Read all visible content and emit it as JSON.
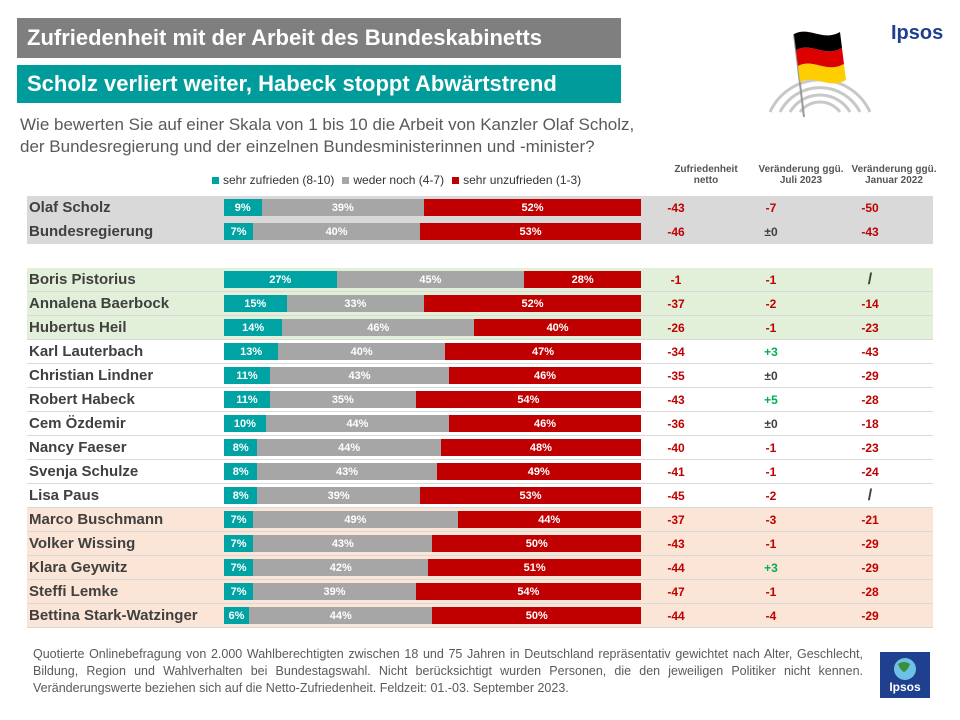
{
  "title": "Zufriedenheit mit der Arbeit des Bundeskabinetts",
  "subtitle": "Scholz verliert weiter, Habeck stoppt Abwärtstrend",
  "question_line1": "Wie bewerten Sie auf einer Skala von 1 bis 10 die Arbeit von Kanzler Olaf Scholz,",
  "question_line2": "der Bundesregierung und der einzelnen Bundesministerinnen und -minister?",
  "brand": "Ipsos",
  "colors": {
    "satisfied": "#00a3a3",
    "neutral": "#a6a6a6",
    "unsatisfied": "#c00000",
    "band_gray": "#d9d9d9",
    "band_green": "#e2f0d9",
    "band_orange": "#fbe5d6",
    "neg": "#c00000",
    "pos": "#00b050",
    "neutral_text": "#404040"
  },
  "chart_data": {
    "type": "bar",
    "orientation": "horizontal-stacked-100",
    "legend": [
      "sehr zufrieden (8-10)",
      "weder noch (4-7)",
      "sehr unzufrieden (1-3)"
    ],
    "columns": [
      "Zufriedenheit netto",
      "Veränderung ggü. Juli 2023",
      "Veränderung ggü. Januar 2022"
    ],
    "groups": [
      {
        "band": "gray",
        "rows": [
          {
            "name": "Olaf Scholz",
            "values": [
              9,
              39,
              52
            ],
            "netto": "-43",
            "chg_jul": "-7",
            "chg_jan": "-50"
          },
          {
            "name": "Bundesregierung",
            "values": [
              7,
              40,
              53
            ],
            "netto": "-46",
            "chg_jul": "±0",
            "chg_jan": "-43"
          }
        ]
      },
      {
        "band": "green",
        "rows": [
          {
            "name": "Boris Pistorius",
            "values": [
              27,
              45,
              28
            ],
            "netto": "-1",
            "chg_jul": "-1",
            "chg_jan": "/"
          },
          {
            "name": "Annalena Baerbock",
            "values": [
              15,
              33,
              52
            ],
            "netto": "-37",
            "chg_jul": "-2",
            "chg_jan": "-14"
          },
          {
            "name": "Hubertus Heil",
            "values": [
              14,
              46,
              40
            ],
            "netto": "-26",
            "chg_jul": "-1",
            "chg_jan": "-23"
          }
        ]
      },
      {
        "band": "white",
        "rows": [
          {
            "name": "Karl Lauterbach",
            "values": [
              13,
              40,
              47
            ],
            "netto": "-34",
            "chg_jul": "+3",
            "chg_jan": "-43"
          },
          {
            "name": "Christian Lindner",
            "values": [
              11,
              43,
              46
            ],
            "netto": "-35",
            "chg_jul": "±0",
            "chg_jan": "-29"
          },
          {
            "name": "Robert Habeck",
            "values": [
              11,
              35,
              54
            ],
            "netto": "-43",
            "chg_jul": "+5",
            "chg_jan": "-28"
          },
          {
            "name": "Cem Özdemir",
            "values": [
              10,
              44,
              46
            ],
            "netto": "-36",
            "chg_jul": "±0",
            "chg_jan": "-18"
          },
          {
            "name": "Nancy Faeser",
            "values": [
              8,
              44,
              48
            ],
            "netto": "-40",
            "chg_jul": "-1",
            "chg_jan": "-23"
          },
          {
            "name": "Svenja Schulze",
            "values": [
              8,
              43,
              49
            ],
            "netto": "-41",
            "chg_jul": "-1",
            "chg_jan": "-24"
          },
          {
            "name": "Lisa Paus",
            "values": [
              8,
              39,
              53
            ],
            "netto": "-45",
            "chg_jul": "-2",
            "chg_jan": "/"
          }
        ]
      },
      {
        "band": "orange",
        "rows": [
          {
            "name": "Marco Buschmann",
            "values": [
              7,
              49,
              44
            ],
            "netto": "-37",
            "chg_jul": "-3",
            "chg_jan": "-21"
          },
          {
            "name": "Volker Wissing",
            "values": [
              7,
              43,
              50
            ],
            "netto": "-43",
            "chg_jul": "-1",
            "chg_jan": "-29"
          },
          {
            "name": "Klara Geywitz",
            "values": [
              7,
              42,
              51
            ],
            "netto": "-44",
            "chg_jul": "+3",
            "chg_jan": "-29"
          },
          {
            "name": "Steffi Lemke",
            "values": [
              7,
              39,
              54
            ],
            "netto": "-47",
            "chg_jul": "-1",
            "chg_jan": "-28"
          },
          {
            "name": "Bettina Stark-Watzinger",
            "values": [
              6,
              44,
              50
            ],
            "netto": "-44",
            "chg_jul": "-4",
            "chg_jan": "-29"
          }
        ]
      }
    ]
  },
  "footnote": "Quotierte Onlinebefragung von 2.000 Wahlberechtigten zwischen 18 und 75 Jahren in Deutschland repräsentativ gewichtet nach Alter, Geschlecht, Bildung, Region und Wahlverhalten bei Bundestagswahl. Nicht berücksichtigt wurden Personen, die den je­weiligen Politiker nicht kennen. Veränderungswerte beziehen sich auf die Netto-Zufriedenheit.  Feldzeit: 01.-03. September 2023."
}
